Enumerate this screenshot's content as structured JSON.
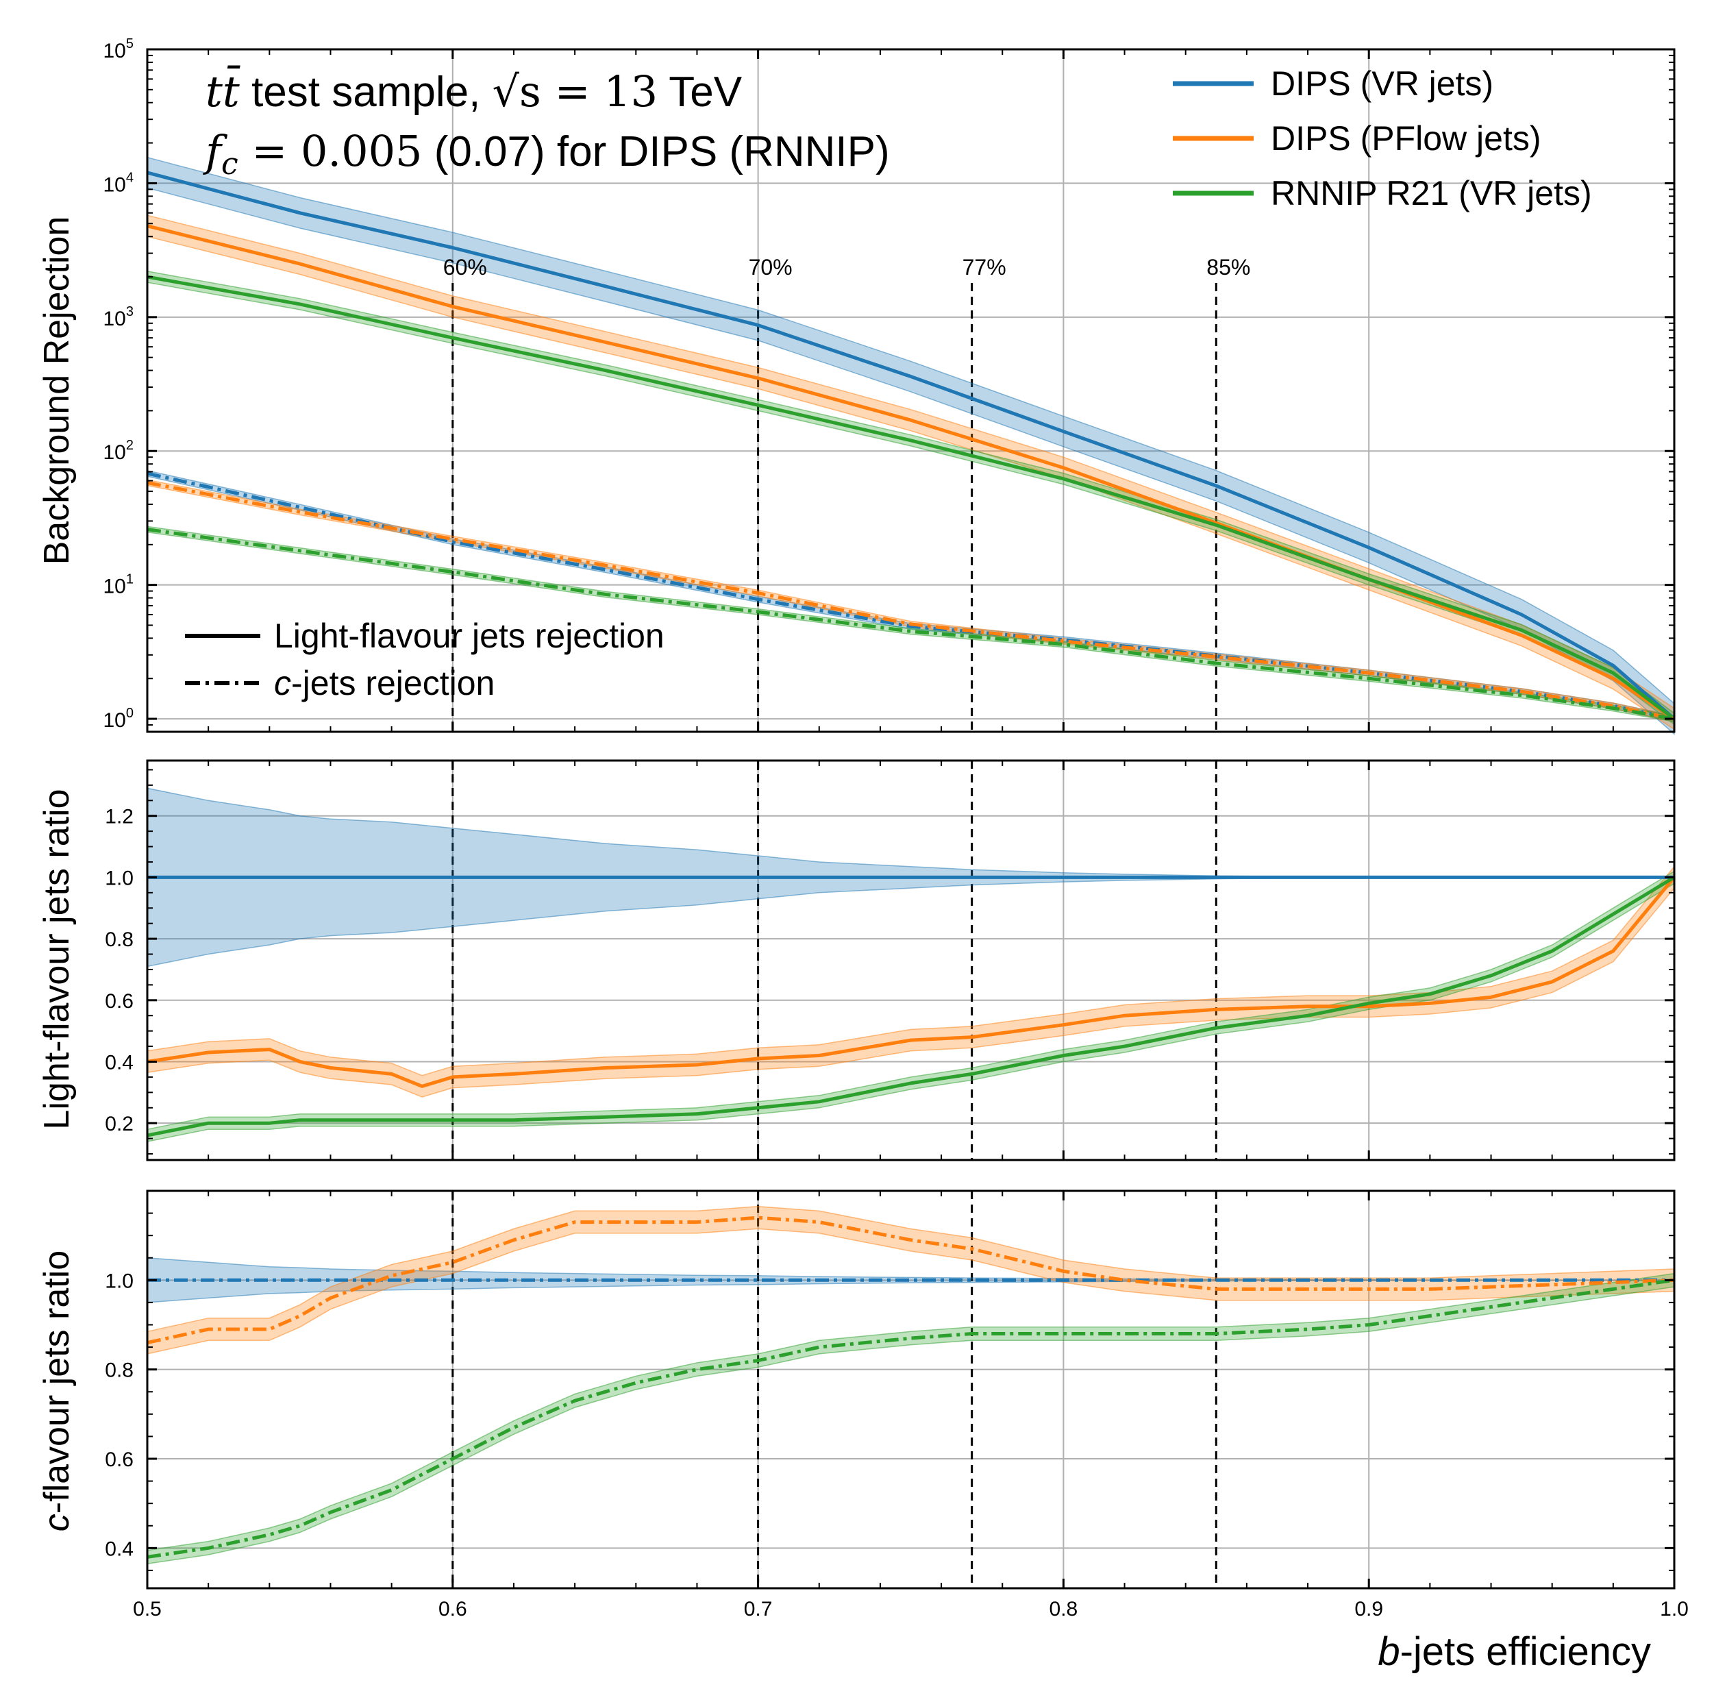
{
  "figure": {
    "x_label_prefix": "b",
    "x_label_rest": "-jets efficiency",
    "annotation_line1_math": "tt̄",
    "annotation_line1_text": " test sample, ",
    "annotation_line1_math2": "√s = 13",
    "annotation_line1_text2": " TeV",
    "annotation_line2_math": "f",
    "annotation_line2_sub": "c",
    "annotation_line2_math2": " = 0.005",
    "annotation_line2_text": " (0.07) for DIPS (RNNIP)"
  },
  "legend_models": [
    {
      "label": "DIPS (VR jets)",
      "color": "#1f77b4"
    },
    {
      "label": "DIPS (PFlow jets)",
      "color": "#ff7f0e"
    },
    {
      "label": "RNNIP R21 (VR jets)",
      "color": "#2ca02c"
    }
  ],
  "legend_styles": {
    "light_label": "Light-flavour jets rejection",
    "c_label_prefix": "c",
    "c_label_rest": "-jets rejection"
  },
  "working_points": [
    {
      "x": 0.6,
      "label": "60%"
    },
    {
      "x": 0.7,
      "label": "70%"
    },
    {
      "x": 0.77,
      "label": "77%"
    },
    {
      "x": 0.85,
      "label": "85%"
    }
  ],
  "x_ticks": [
    "0.5",
    "0.6",
    "0.7",
    "0.8",
    "0.9",
    "1.0"
  ],
  "chart_data": [
    {
      "type": "line",
      "ylabel": "Background Rejection",
      "yscale": "log",
      "ylim": [
        0.8,
        100000
      ],
      "xlim": [
        0.5,
        1.0
      ],
      "y_ticks": [
        {
          "value": 1,
          "base": "10",
          "exp": "0"
        },
        {
          "value": 10,
          "base": "10",
          "exp": "1"
        },
        {
          "value": 100,
          "base": "10",
          "exp": "2"
        },
        {
          "value": 1000,
          "base": "10",
          "exp": "3"
        },
        {
          "value": 10000,
          "base": "10",
          "exp": "4"
        },
        {
          "value": 100000,
          "base": "10",
          "exp": "5"
        }
      ],
      "x": [
        0.5,
        0.55,
        0.6,
        0.65,
        0.7,
        0.75,
        0.8,
        0.85,
        0.9,
        0.95,
        0.98,
        1.0
      ],
      "series": [
        {
          "name": "DIPS (VR jets)",
          "style": "light",
          "color": "#1f77b4",
          "band": 0.3,
          "values": [
            12000,
            6000,
            3300,
            1700,
            870,
            360,
            140,
            55,
            19,
            6,
            2.5,
            1.0
          ]
        },
        {
          "name": "DIPS (PFlow jets)",
          "style": "light",
          "color": "#ff7f0e",
          "band": 0.2,
          "values": [
            4800,
            2500,
            1200,
            650,
            350,
            170,
            75,
            29,
            11,
            4.2,
            2.0,
            1.0
          ]
        },
        {
          "name": "RNNIP R21 (VR jets)",
          "style": "light",
          "color": "#2ca02c",
          "band": 0.1,
          "values": [
            2000,
            1250,
            700,
            400,
            220,
            120,
            62,
            28,
            11,
            4.6,
            2.2,
            1.0
          ]
        },
        {
          "name": "DIPS (VR jets)",
          "style": "c",
          "color": "#1f77b4",
          "band": 0.05,
          "values": [
            68,
            38,
            21,
            13,
            7.8,
            4.9,
            3.9,
            2.95,
            2.2,
            1.6,
            1.25,
            1.0
          ]
        },
        {
          "name": "DIPS (PFlow jets)",
          "style": "c",
          "color": "#ff7f0e",
          "band": 0.05,
          "values": [
            58,
            35,
            22,
            14,
            8.7,
            5.1,
            3.8,
            2.9,
            2.2,
            1.6,
            1.25,
            1.0
          ]
        },
        {
          "name": "RNNIP R21 (VR jets)",
          "style": "c",
          "color": "#2ca02c",
          "band": 0.05,
          "values": [
            26,
            18,
            12.5,
            8.5,
            6.3,
            4.5,
            3.6,
            2.6,
            2.0,
            1.5,
            1.2,
            1.0
          ]
        }
      ]
    },
    {
      "type": "line",
      "ylabel": "Light-flavour jets ratio",
      "ylim": [
        0.08,
        1.38
      ],
      "xlim": [
        0.5,
        1.0
      ],
      "y_ticks": [
        "0.2",
        "0.4",
        "0.6",
        "0.8",
        "1.0",
        "1.2"
      ],
      "x": [
        0.5,
        0.52,
        0.54,
        0.55,
        0.56,
        0.58,
        0.59,
        0.6,
        0.62,
        0.65,
        0.68,
        0.7,
        0.72,
        0.75,
        0.77,
        0.8,
        0.82,
        0.85,
        0.88,
        0.9,
        0.92,
        0.94,
        0.96,
        0.98,
        1.0
      ],
      "series": [
        {
          "name": "DIPS (VR jets)",
          "color": "#1f77b4",
          "values": [
            1.0,
            1.0,
            1.0,
            1.0,
            1.0,
            1.0,
            1.0,
            1.0,
            1.0,
            1.0,
            1.0,
            1.0,
            1.0,
            1.0,
            1.0,
            1.0,
            1.0,
            1.0,
            1.0,
            1.0,
            1.0,
            1.0,
            1.0,
            1.0,
            1.0
          ],
          "band_lower": [
            0.71,
            0.75,
            0.78,
            0.8,
            0.81,
            0.82,
            0.83,
            0.84,
            0.86,
            0.89,
            0.91,
            0.93,
            0.95,
            0.965,
            0.975,
            0.985,
            0.99,
            0.995,
            0.998,
            0.999,
            1.0,
            1.0,
            1.0,
            1.0,
            1.0
          ],
          "band_upper": [
            1.29,
            1.25,
            1.22,
            1.2,
            1.19,
            1.18,
            1.17,
            1.16,
            1.14,
            1.11,
            1.09,
            1.07,
            1.05,
            1.035,
            1.025,
            1.015,
            1.01,
            1.005,
            1.002,
            1.001,
            1.0,
            1.0,
            1.0,
            1.0,
            1.0
          ]
        },
        {
          "name": "DIPS (PFlow jets)",
          "color": "#ff7f0e",
          "band": 0.035,
          "values": [
            0.4,
            0.43,
            0.44,
            0.4,
            0.38,
            0.36,
            0.32,
            0.35,
            0.36,
            0.38,
            0.39,
            0.41,
            0.42,
            0.47,
            0.48,
            0.52,
            0.55,
            0.57,
            0.58,
            0.58,
            0.59,
            0.61,
            0.66,
            0.76,
            1.0
          ]
        },
        {
          "name": "RNNIP R21 (VR jets)",
          "color": "#2ca02c",
          "band": 0.02,
          "values": [
            0.16,
            0.2,
            0.2,
            0.21,
            0.21,
            0.21,
            0.21,
            0.21,
            0.21,
            0.22,
            0.23,
            0.25,
            0.27,
            0.33,
            0.36,
            0.42,
            0.45,
            0.51,
            0.55,
            0.59,
            0.62,
            0.68,
            0.76,
            0.88,
            1.0
          ]
        }
      ]
    },
    {
      "type": "line",
      "ylabel_prefix": "c",
      "ylabel": "-flavour jets ratio",
      "ylim": [
        0.31,
        1.2
      ],
      "xlim": [
        0.5,
        1.0
      ],
      "y_ticks": [
        "0.4",
        "0.6",
        "0.8",
        "1.0"
      ],
      "x": [
        0.5,
        0.52,
        0.54,
        0.55,
        0.56,
        0.58,
        0.6,
        0.62,
        0.64,
        0.66,
        0.68,
        0.7,
        0.72,
        0.75,
        0.77,
        0.8,
        0.82,
        0.85,
        0.88,
        0.9,
        0.92,
        0.94,
        0.96,
        0.98,
        1.0
      ],
      "series": [
        {
          "name": "DIPS (VR jets)",
          "color": "#1f77b4",
          "values": [
            1.0,
            1.0,
            1.0,
            1.0,
            1.0,
            1.0,
            1.0,
            1.0,
            1.0,
            1.0,
            1.0,
            1.0,
            1.0,
            1.0,
            1.0,
            1.0,
            1.0,
            1.0,
            1.0,
            1.0,
            1.0,
            1.0,
            1.0,
            1.0,
            1.0
          ],
          "band_lower": [
            0.95,
            0.96,
            0.97,
            0.972,
            0.975,
            0.978,
            0.98,
            0.983,
            0.985,
            0.987,
            0.989,
            0.99,
            0.992,
            0.994,
            0.995,
            0.996,
            0.997,
            0.998,
            0.999,
            0.999,
            1.0,
            1.0,
            1.0,
            1.0,
            1.0
          ],
          "band_upper": [
            1.05,
            1.04,
            1.03,
            1.028,
            1.025,
            1.022,
            1.02,
            1.017,
            1.015,
            1.013,
            1.011,
            1.01,
            1.008,
            1.006,
            1.005,
            1.004,
            1.003,
            1.002,
            1.001,
            1.001,
            1.0,
            1.0,
            1.0,
            1.0,
            1.0
          ]
        },
        {
          "name": "DIPS (PFlow jets)",
          "color": "#ff7f0e",
          "band": 0.025,
          "values": [
            0.86,
            0.89,
            0.89,
            0.92,
            0.96,
            1.01,
            1.04,
            1.09,
            1.13,
            1.13,
            1.13,
            1.14,
            1.13,
            1.09,
            1.07,
            1.02,
            1.0,
            0.98,
            0.98,
            0.98,
            0.98,
            0.985,
            0.99,
            0.995,
            1.0
          ]
        },
        {
          "name": "RNNIP R21 (VR jets)",
          "color": "#2ca02c",
          "band": 0.015,
          "values": [
            0.38,
            0.4,
            0.43,
            0.45,
            0.48,
            0.53,
            0.6,
            0.67,
            0.73,
            0.77,
            0.8,
            0.82,
            0.85,
            0.87,
            0.88,
            0.88,
            0.88,
            0.88,
            0.89,
            0.9,
            0.92,
            0.94,
            0.96,
            0.98,
            1.0
          ]
        }
      ]
    }
  ]
}
